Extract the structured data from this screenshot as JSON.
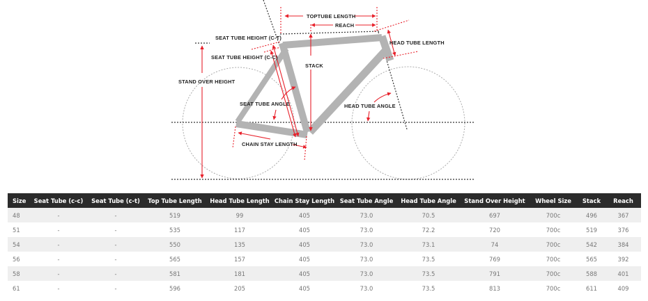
{
  "diagram": {
    "labels": {
      "toptube_length": "TOPTUBE LENGTH",
      "reach": "REACH",
      "seat_tube_height_ct": "SEAT TUBE HEIGHT (C-T)",
      "seat_tube_height_cc": "SEAT TUBE HEIGHT (C-C)",
      "head_tube_length": "HEAD TUBE LENGTH",
      "stack": "STACK",
      "stand_over_height": "STAND OVER HEIGHT",
      "seat_tube_angle": "SEAT TUBE ANGLE",
      "head_tube_angle": "HEAD TUBE ANGLE",
      "chain_stay_length": "CHAIN STAY LENGTH"
    },
    "colors": {
      "frame": "#b3b3b3",
      "dimension": "#e8202a",
      "guide": "#333333",
      "wheel": "#aaaaaa"
    }
  },
  "table": {
    "headers": [
      "Size",
      "Seat Tube (c-c)",
      "Seat Tube (c-t)",
      "Top Tube Length",
      "Head Tube Length",
      "Chain Stay Length",
      "Seat Tube Angle",
      "Head Tube Angle",
      "Stand Over Height",
      "Wheel Size",
      "Stack",
      "Reach"
    ],
    "rows": [
      [
        "48",
        "-",
        "-",
        "519",
        "99",
        "405",
        "73.0",
        "70.5",
        "697",
        "700c",
        "496",
        "367"
      ],
      [
        "51",
        "-",
        "-",
        "535",
        "117",
        "405",
        "73.0",
        "72.2",
        "720",
        "700c",
        "519",
        "376"
      ],
      [
        "54",
        "-",
        "-",
        "550",
        "135",
        "405",
        "73.0",
        "73.1",
        "74",
        "700c",
        "542",
        "384"
      ],
      [
        "56",
        "-",
        "-",
        "565",
        "157",
        "405",
        "73.0",
        "73.5",
        "769",
        "700c",
        "565",
        "392"
      ],
      [
        "58",
        "-",
        "-",
        "581",
        "181",
        "405",
        "73.0",
        "73.5",
        "791",
        "700c",
        "588",
        "401"
      ],
      [
        "61",
        "-",
        "-",
        "596",
        "205",
        "405",
        "73.0",
        "73.5",
        "813",
        "700c",
        "611",
        "409"
      ]
    ],
    "colors": {
      "header_bg": "#2b2b2b",
      "header_text": "#ffffff",
      "row_alt": "#efefef",
      "cell_text": "#777777"
    }
  }
}
